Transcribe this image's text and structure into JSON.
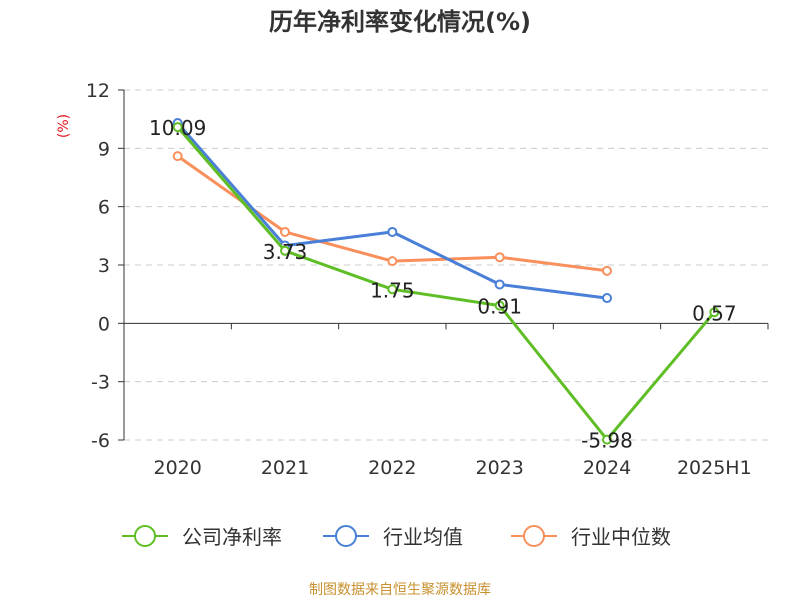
{
  "title": "历年净利率变化情况(%)",
  "source": "制图数据来自恒生聚源数据库",
  "colors": {
    "company": "#5fbe25",
    "industry_avg": "#4a7fd8",
    "industry_median": "#f98f5b",
    "unit": "#e0161e",
    "source": "#c8902e"
  },
  "chart_data": {
    "type": "line",
    "title": "历年净利率变化情况(%)",
    "ylabel": "(%)",
    "xlabel": "",
    "ylim": [
      -6,
      12
    ],
    "yticks": [
      12,
      9,
      6,
      3,
      0,
      -3,
      -6
    ],
    "ytick_labels": [
      "12",
      "9",
      "6",
      "3",
      "0",
      "-3",
      "-6"
    ],
    "grid": true,
    "legend": "bottom",
    "categories": [
      "2020",
      "2021",
      "2022",
      "2023",
      "2024",
      "2025H1"
    ],
    "series": [
      {
        "name": "公司净利率",
        "color": "#5fbe25",
        "values": [
          10.09,
          3.73,
          1.75,
          0.91,
          -5.98,
          0.57
        ],
        "labels": [
          "10.09",
          "3.73",
          "1.75",
          "0.91",
          "-5.98",
          "0.57"
        ]
      },
      {
        "name": "行业均值",
        "color": "#4a7fd8",
        "values": [
          10.3,
          4.0,
          4.7,
          2.0,
          1.3,
          null
        ]
      },
      {
        "name": "行业中位数",
        "color": "#f98f5b",
        "values": [
          8.6,
          4.7,
          3.2,
          3.4,
          2.7,
          null
        ]
      }
    ]
  }
}
